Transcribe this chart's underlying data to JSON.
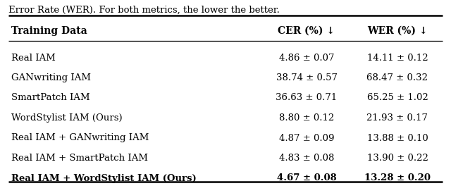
{
  "caption_top": "Error Rate (WER). For both metrics, the lower the better.",
  "header": [
    "Training Data",
    "CER (%) ↓",
    "WER (%) ↓"
  ],
  "rows": [
    [
      "Real IAM",
      "4.86 ± 0.07",
      "14.11 ± 0.12",
      false
    ],
    [
      "GANwriting IAM",
      "38.74 ± 0.57",
      "68.47 ± 0.32",
      false
    ],
    [
      "SmartPatch IAM",
      "36.63 ± 0.71",
      "65.25 ± 1.02",
      false
    ],
    [
      "WordStylist IAM (Ours)",
      "8.80 ± 0.12",
      "21.93 ± 0.17",
      false
    ],
    [
      "Real IAM + GANwriting IAM",
      "4.87 ± 0.09",
      "13.88 ± 0.10",
      false
    ],
    [
      "Real IAM + SmartPatch IAM",
      "4.83 ± 0.08",
      "13.90 ± 0.22",
      false
    ],
    [
      "Real IAM + WordStylist IAM (Ours)",
      "4.67 ± 0.08",
      "13.28 ± 0.20",
      true
    ]
  ],
  "bg_color": "#ffffff",
  "text_color": "#000000",
  "line_color": "#000000",
  "font_size": 9.5,
  "header_font_size": 10,
  "caption_font_size": 9.5,
  "fig_width": 6.4,
  "fig_height": 2.64,
  "dpi": 100
}
